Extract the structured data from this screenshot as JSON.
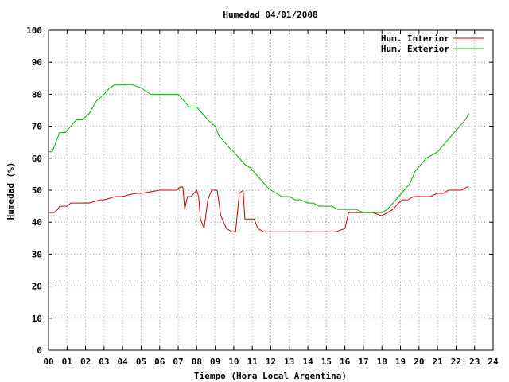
{
  "chart_data": {
    "type": "line",
    "title": "Humedad 04/01/2008",
    "xlabel": "Tiempo (Hora Local Argentina)",
    "ylabel": "Humedad (%)",
    "xlim": [
      0,
      24
    ],
    "ylim": [
      0,
      100
    ],
    "xticks": [
      "00",
      "01",
      "02",
      "03",
      "04",
      "05",
      "06",
      "07",
      "08",
      "09",
      "10",
      "11",
      "12",
      "13",
      "14",
      "15",
      "16",
      "17",
      "18",
      "19",
      "20",
      "21",
      "22",
      "23",
      "24"
    ],
    "yticks": [
      "0",
      "10",
      "20",
      "30",
      "40",
      "50",
      "60",
      "70",
      "80",
      "90",
      "100"
    ],
    "grid": true,
    "legend_position": "top-right",
    "series": [
      {
        "name": "Hum. Interior",
        "color": "#cc0000",
        "x": [
          0,
          0.3,
          0.5,
          0.6,
          0.9,
          1.0,
          1.2,
          1.5,
          1.8,
          2.0,
          2.2,
          2.5,
          2.8,
          3.0,
          3.3,
          3.6,
          4.0,
          4.3,
          4.7,
          5.0,
          5.5,
          6.0,
          6.3,
          6.6,
          6.9,
          7.1,
          7.25,
          7.35,
          7.5,
          7.7,
          8.0,
          8.1,
          8.2,
          8.4,
          8.6,
          8.8,
          9.0,
          9.1,
          9.3,
          9.6,
          9.9,
          10.1,
          10.3,
          10.5,
          10.6,
          10.9,
          11.1,
          11.3,
          11.6,
          12.0,
          12.5,
          13.0,
          14.0,
          14.5,
          15.0,
          15.5,
          16.0,
          16.2,
          16.5,
          17.0,
          17.5,
          18.0,
          18.3,
          18.6,
          18.9,
          19.1,
          19.4,
          19.7,
          20.0,
          20.3,
          20.6,
          21.0,
          21.3,
          21.6,
          22.0,
          22.3,
          22.6,
          22.7
        ],
        "values": [
          43,
          43,
          44,
          45,
          45,
          45,
          46,
          46,
          46,
          46,
          46,
          46.5,
          47,
          47,
          47.5,
          48,
          48,
          48.5,
          49,
          49,
          49.5,
          50,
          50,
          50,
          50,
          51,
          51,
          44,
          48,
          48,
          50,
          48,
          41,
          38,
          47,
          50,
          50,
          50,
          42,
          38,
          37,
          37,
          49,
          50,
          41,
          41,
          41,
          38,
          37,
          37,
          37,
          37,
          37,
          37,
          37,
          37,
          38,
          43,
          43,
          43,
          43,
          42,
          43,
          44,
          46,
          47,
          47,
          48,
          48,
          48,
          48,
          49,
          49,
          50,
          50,
          50,
          51,
          51
        ]
      },
      {
        "name": "Hum. Exterior",
        "color": "#00b000",
        "x": [
          0,
          0.2,
          0.4,
          0.6,
          0.9,
          1.2,
          1.5,
          1.8,
          2.2,
          2.6,
          3.0,
          3.3,
          3.6,
          4.0,
          4.5,
          5.0,
          5.5,
          6.0,
          6.5,
          7.0,
          7.3,
          7.6,
          8.0,
          8.3,
          8.6,
          9.0,
          9.2,
          9.5,
          9.8,
          10.0,
          10.3,
          10.6,
          10.9,
          11.2,
          11.5,
          11.8,
          12.0,
          12.3,
          12.6,
          13.0,
          13.3,
          13.6,
          14.0,
          14.3,
          14.6,
          15.0,
          15.3,
          15.6,
          16.0,
          16.3,
          16.6,
          17.0,
          17.3,
          17.6,
          18.0,
          18.3,
          18.6,
          18.9,
          19.2,
          19.5,
          19.8,
          20.1,
          20.4,
          20.7,
          21.0,
          21.3,
          21.6,
          21.9,
          22.2,
          22.5,
          22.7
        ],
        "values": [
          62,
          62,
          65,
          68,
          68,
          70,
          72,
          72,
          74,
          78,
          80,
          82,
          83,
          83,
          83,
          82,
          80,
          80,
          80,
          80,
          78,
          76,
          76,
          74,
          72,
          70,
          67,
          65,
          63,
          62,
          60,
          58,
          57,
          55,
          53,
          51,
          50,
          49,
          48,
          48,
          47,
          47,
          46,
          46,
          45,
          45,
          45,
          44,
          44,
          44,
          44,
          43,
          43,
          43,
          43,
          44,
          46,
          48,
          50,
          52,
          56,
          58,
          60,
          61,
          62,
          64,
          66,
          68,
          70,
          72,
          74
        ]
      }
    ]
  }
}
